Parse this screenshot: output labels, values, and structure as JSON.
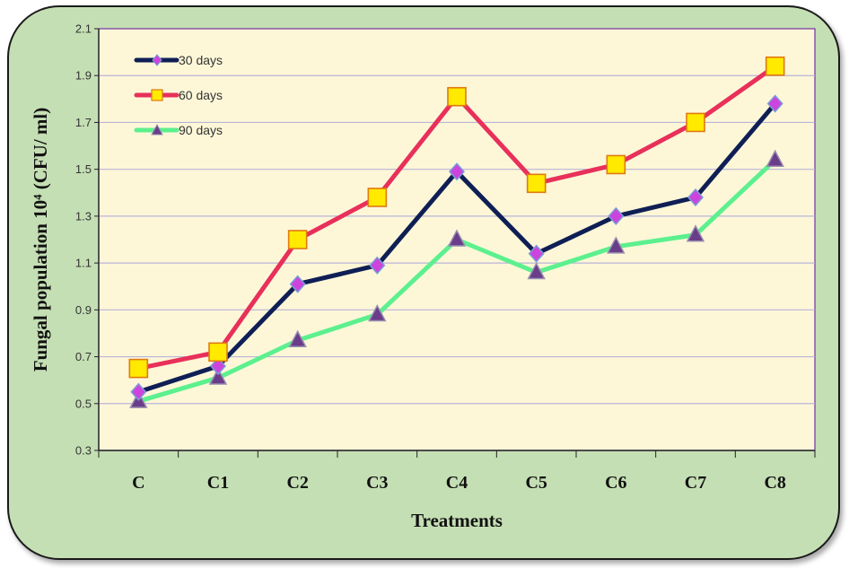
{
  "chart_data": {
    "type": "line",
    "title": "",
    "xlabel": "Treatments",
    "ylabel": "Fungal population 10⁴ (CFU/ ml)",
    "categories": [
      "C",
      "C1",
      "C2",
      "C3",
      "C4",
      "C5",
      "C6",
      "C7",
      "C8"
    ],
    "ylim": [
      0.3,
      2.1
    ],
    "yticks": [
      "0.3",
      "0.5",
      "0.7",
      "0.9",
      "1.1",
      "1.3",
      "1.5",
      "1.7",
      "1.9",
      "2.1"
    ],
    "grid": true,
    "legend_position": "top-left",
    "plot_background": "#fdf7d8",
    "series": [
      {
        "name": "30 days",
        "values": [
          0.55,
          0.66,
          1.01,
          1.09,
          1.49,
          1.14,
          1.3,
          1.38,
          1.78
        ],
        "line_color": "#0f1f55",
        "marker": "diamond",
        "marker_color": "#cc44dd"
      },
      {
        "name": "60 days",
        "values": [
          0.65,
          0.72,
          1.2,
          1.38,
          1.81,
          1.44,
          1.52,
          1.7,
          1.94
        ],
        "line_color": "#e8305a",
        "marker": "square",
        "marker_color": "#ffea00"
      },
      {
        "name": "90 days",
        "values": [
          0.51,
          0.61,
          0.77,
          0.88,
          1.2,
          1.06,
          1.17,
          1.22,
          1.54
        ],
        "line_color": "#5cf08e",
        "marker": "triangle",
        "marker_color": "#6a3d8a"
      }
    ]
  }
}
